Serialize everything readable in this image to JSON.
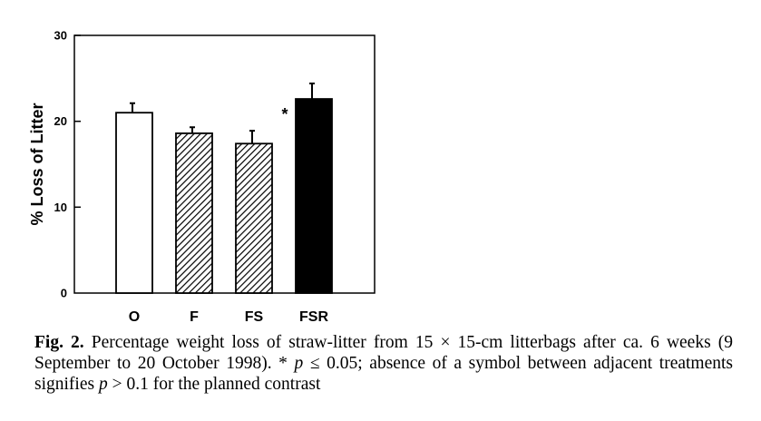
{
  "chart_data": {
    "type": "bar",
    "categories": [
      "O",
      "F",
      "FS",
      "FSR"
    ],
    "values": [
      21.0,
      18.6,
      17.4,
      22.6
    ],
    "errors": [
      1.1,
      0.7,
      1.5,
      1.8
    ],
    "fills": [
      "open",
      "hatched",
      "hatched",
      "solid"
    ],
    "ylabel": "% Loss of Litter",
    "ylim": [
      0,
      30
    ],
    "yticks": [
      0,
      10,
      20,
      30
    ],
    "annotations": [
      {
        "text": "*",
        "between": [
          "FS",
          "FSR"
        ]
      }
    ],
    "grid": false,
    "legend": "none"
  },
  "caption": {
    "label": "Fig. 2.",
    "part1": "Percentage weight loss of straw-litter from 15 × 15-cm litterbags after ca. 6 weeks (9 September to 20 October 1998). * ",
    "p1": "p",
    "part2": " ≤ 0.05; absence of a symbol between adjacent treatments signifies ",
    "p2": "p",
    "part3": " > 0.1 for the planned contrast"
  }
}
